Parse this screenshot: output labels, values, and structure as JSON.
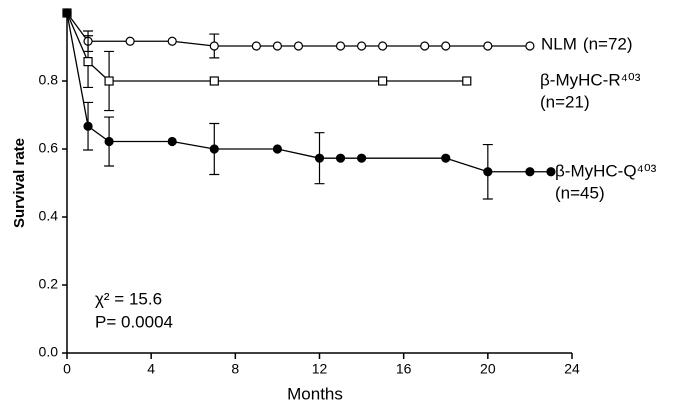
{
  "chart_data": {
    "type": "line",
    "x_label": "Months",
    "y_label": "Survival rate",
    "xlim": [
      0,
      24
    ],
    "xticks": [
      0,
      4,
      8,
      12,
      16,
      20,
      24
    ],
    "ylim": [
      0,
      1
    ],
    "yticks": [
      {
        "value": 0,
        "label": "0.0"
      },
      0.2,
      0.4,
      0.6,
      0.8
    ],
    "annotations": [
      "χ² = 15.6",
      "P= 0.0004"
    ],
    "series": [
      {
        "name": "NLM",
        "n_label": "(n=72)",
        "color": "#000000",
        "marker": "circle-open",
        "x": [
          0,
          1,
          3,
          5,
          7,
          9,
          10,
          11,
          13,
          14,
          15,
          17,
          18,
          20,
          22
        ],
        "values": [
          1.0,
          0.917,
          0.917,
          0.917,
          0.903,
          0.903,
          0.903,
          0.903,
          0.903,
          0.903,
          0.903,
          0.903,
          0.903,
          0.903,
          0.903
        ],
        "errors": [
          null,
          0.03,
          null,
          null,
          0.035,
          null,
          null,
          null,
          null,
          null,
          null,
          null,
          null,
          null,
          null
        ]
      },
      {
        "name": "β-MyHC-R⁴⁰³",
        "n_label": "(n=21)",
        "color": "#000000",
        "marker": "square-open",
        "x": [
          0,
          1,
          2,
          7,
          15,
          19
        ],
        "values": [
          1.0,
          0.857,
          0.8,
          0.8,
          0.8,
          0.8
        ],
        "errors": [
          null,
          0.076,
          0.087,
          null,
          null,
          null
        ]
      },
      {
        "name": "β-MyHC-Q⁴⁰³",
        "n_label": "(n=45)",
        "color": "#000000",
        "marker": "circle-filled",
        "x": [
          0,
          1,
          2,
          5,
          7,
          10,
          12,
          13,
          14,
          18,
          20,
          22,
          23
        ],
        "values": [
          1.0,
          0.667,
          0.622,
          0.622,
          0.6,
          0.6,
          0.573,
          0.573,
          0.573,
          0.573,
          0.533,
          0.533,
          0.533
        ],
        "errors": [
          null,
          0.07,
          0.072,
          null,
          0.075,
          null,
          0.075,
          null,
          null,
          null,
          0.08,
          null,
          null
        ]
      }
    ]
  }
}
